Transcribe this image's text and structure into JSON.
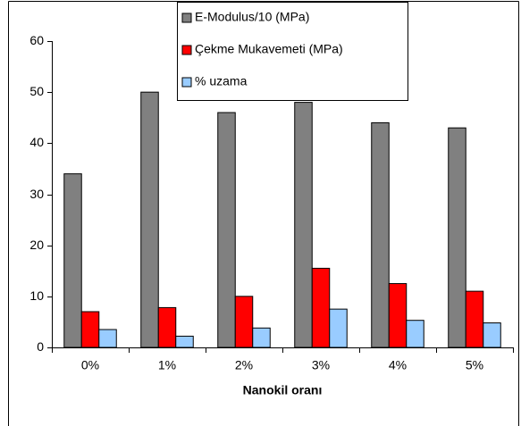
{
  "chart_data": {
    "type": "bar",
    "x_label": "Nanokil oranı",
    "categories": [
      "0%",
      "1%",
      "2%",
      "3%",
      "4%",
      "5%"
    ],
    "series": [
      {
        "name": "E-Modulus/10 (MPa)",
        "color": "#808080",
        "values": [
          34,
          50,
          46,
          48,
          44,
          43
        ]
      },
      {
        "name": "Çekme Mukavemeti (MPa)",
        "color": "#ff0000",
        "values": [
          7,
          7.8,
          10,
          15.5,
          12.5,
          11
        ]
      },
      {
        "name": "% uzama",
        "color": "#99ccff",
        "values": [
          3.5,
          2.2,
          3.8,
          7.5,
          5.3,
          4.8
        ]
      }
    ],
    "ylim": [
      0,
      60
    ],
    "yticks": [
      0,
      10,
      20,
      30,
      40,
      50,
      60
    ],
    "grid": false
  }
}
